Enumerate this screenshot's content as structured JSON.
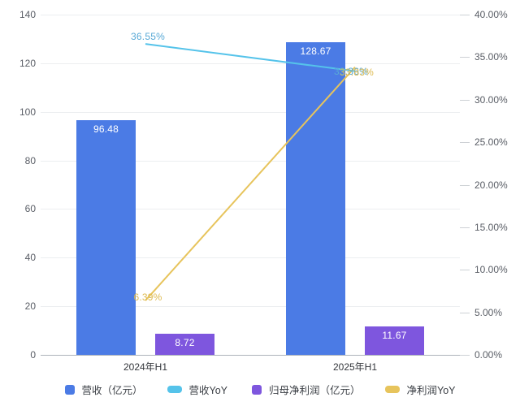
{
  "chart_data": {
    "type": "bar",
    "subtype": "grouped-bars-with-lines-dual-axis",
    "categories": [
      "2024年H1",
      "2025年H1"
    ],
    "series": [
      {
        "name": "营收（亿元）",
        "type": "bar",
        "axis": "left",
        "color": "#4B7BE5",
        "values": [
          96.48,
          128.67
        ],
        "labels": [
          "96.48",
          "128.67"
        ],
        "label_color": "#ffffff"
      },
      {
        "name": "营收YoY",
        "type": "line",
        "axis": "right",
        "color": "#55C3EA",
        "values": [
          36.55,
          33.36
        ],
        "labels": [
          "36.55%",
          "33.36%"
        ],
        "label_color": "#58A9D6",
        "label_offsets": [
          [
            3,
            -9
          ],
          [
            -5,
            0
          ]
        ]
      },
      {
        "name": "归母净利润（亿元）",
        "type": "bar",
        "axis": "left",
        "color": "#7E56DE",
        "values": [
          8.72,
          11.67
        ],
        "labels": [
          "8.72",
          "11.67"
        ],
        "label_color": "#ffffff"
      },
      {
        "name": "净利润YoY",
        "type": "line",
        "axis": "right",
        "color": "#E7C45C",
        "values": [
          6.39,
          33.83
        ],
        "labels": [
          "6.39%",
          "33.83%"
        ],
        "label_color": "#DDB94E",
        "label_offsets": [
          [
            3,
            -4
          ],
          [
            2,
            6
          ]
        ]
      }
    ],
    "left_axis": {
      "min": 0,
      "max": 140,
      "step": 20,
      "ticks": [
        "0",
        "20",
        "40",
        "60",
        "80",
        "100",
        "120",
        "140"
      ]
    },
    "right_axis": {
      "min": 0,
      "max": 40,
      "step": 5,
      "ticks": [
        "0.00%",
        "5.00%",
        "10.00%",
        "15.00%",
        "20.00%",
        "25.00%",
        "30.00%",
        "35.00%",
        "40.00%"
      ]
    },
    "grid": true,
    "legend_position": "bottom"
  }
}
